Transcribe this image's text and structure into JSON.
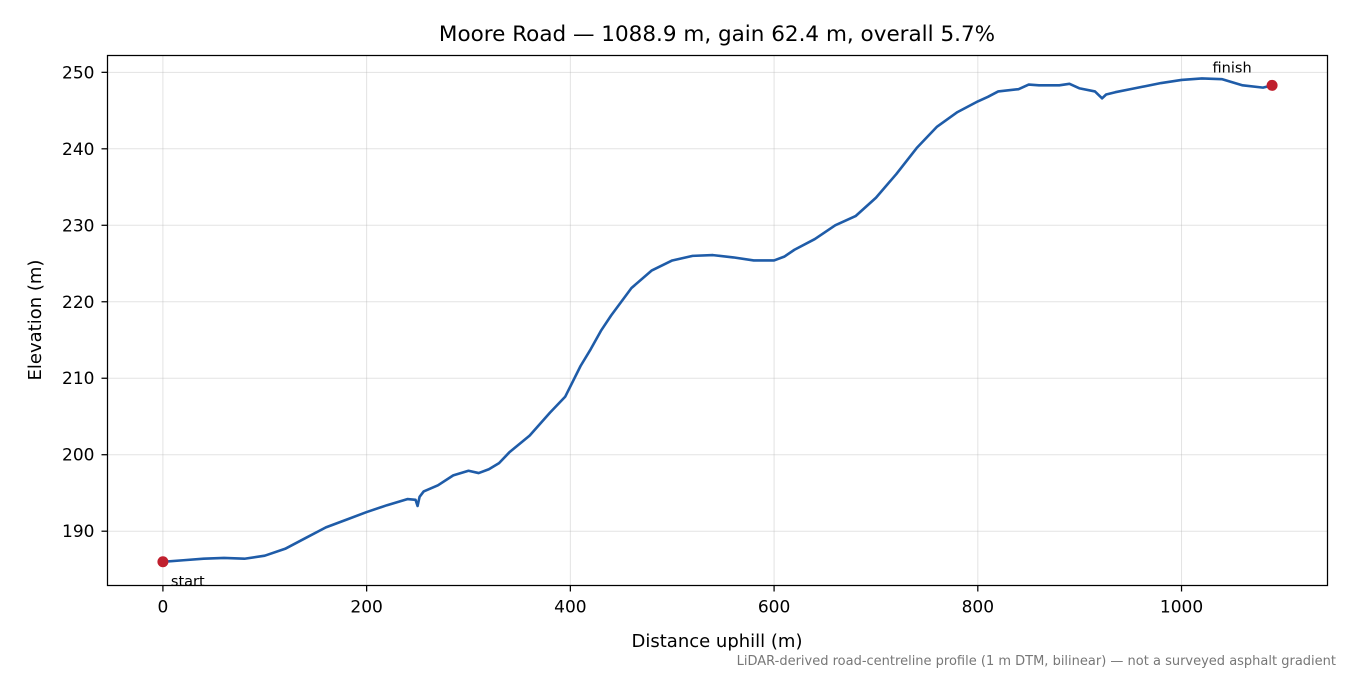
{
  "chart_data": {
    "type": "line",
    "title": "Moore Road — 1088.9 m, gain 62.4 m, overall 5.7%",
    "xlabel": "Distance uphill (m)",
    "ylabel": "Elevation (m)",
    "xlim": [
      -54.4,
      1143.3
    ],
    "ylim": [
      182.9,
      252.2
    ],
    "xticks": [
      0,
      200,
      400,
      600,
      800,
      1000
    ],
    "yticks": [
      190,
      200,
      210,
      220,
      230,
      240,
      250
    ],
    "grid": true,
    "footnote": "LiDAR-derived road-centreline profile (1 m DTM, bilinear) — not a surveyed asphalt gradient",
    "series": [
      {
        "color": "#1f5ca8",
        "x": [
          0,
          20,
          40,
          60,
          80,
          100,
          120,
          140,
          160,
          180,
          200,
          220,
          240,
          248,
          250,
          252,
          256,
          270,
          285,
          300,
          310,
          320,
          330,
          340,
          360,
          380,
          395,
          410,
          420,
          430,
          440,
          460,
          480,
          500,
          520,
          540,
          560,
          580,
          600,
          610,
          620,
          640,
          650,
          660,
          680,
          700,
          720,
          740,
          760,
          780,
          800,
          810,
          820,
          840,
          850,
          860,
          880,
          890,
          900,
          915,
          922,
          926,
          935,
          950,
          980,
          1000,
          1020,
          1040,
          1060,
          1080,
          1088.9
        ],
        "y": [
          186.0,
          186.2,
          186.4,
          186.5,
          186.4,
          186.8,
          187.7,
          189.1,
          190.5,
          191.5,
          192.5,
          193.4,
          194.2,
          194.1,
          193.3,
          194.5,
          195.2,
          196.0,
          197.3,
          197.9,
          197.6,
          198.1,
          198.9,
          200.3,
          202.5,
          205.5,
          207.6,
          211.6,
          213.8,
          216.2,
          218.2,
          221.8,
          224.1,
          225.4,
          226.0,
          226.1,
          225.8,
          225.4,
          225.4,
          225.9,
          226.8,
          228.2,
          229.1,
          230.0,
          231.2,
          233.6,
          236.7,
          240.1,
          242.9,
          244.8,
          246.2,
          246.8,
          247.5,
          247.8,
          248.4,
          248.3,
          248.3,
          248.5,
          247.9,
          247.5,
          246.6,
          247.1,
          247.4,
          247.8,
          248.6,
          249.0,
          249.2,
          249.1,
          248.3,
          248.0,
          248.3
        ]
      }
    ],
    "markers": [
      {
        "x": 0,
        "y": 186.0,
        "label": "start",
        "color": "#c0202e"
      },
      {
        "x": 1088.9,
        "y": 248.3,
        "label": "finish",
        "color": "#c0202e"
      }
    ]
  }
}
